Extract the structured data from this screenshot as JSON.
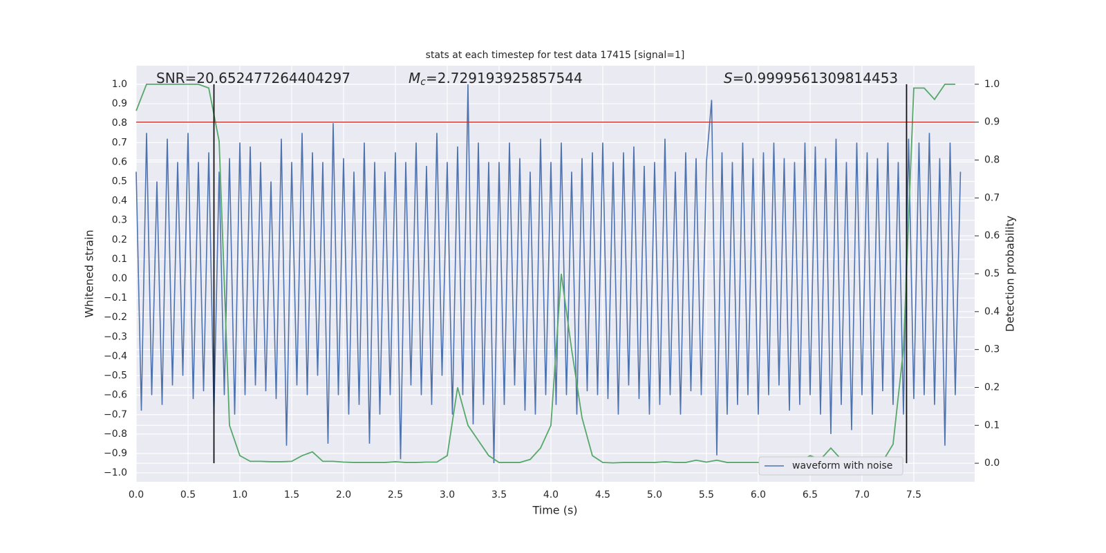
{
  "chart_data": {
    "type": "line",
    "title": "stats at each timestep for test data 17415 [signal=1]",
    "xlabel": "Time (s)",
    "ylabel": "Whitened strain",
    "y2label": "Detection probability",
    "annotations": [
      {
        "text": "SNR=20.652477264404297"
      },
      {
        "symbol": "M",
        "subscript": "c",
        "text": "=2.729193925857544"
      },
      {
        "symbol": "S",
        "text": "=0.9999561309814453"
      }
    ],
    "xlim": [
      0,
      8.087
    ],
    "xticks": [
      {
        "value": 0,
        "label": "0.0"
      },
      0.5,
      {
        "value": 1,
        "label": "1.0"
      },
      1.5,
      {
        "value": 2,
        "label": "2.0"
      },
      2.5,
      {
        "value": 3,
        "label": "3.0"
      },
      3.5,
      {
        "value": 4,
        "label": "4.0"
      },
      4.5,
      {
        "value": 5,
        "label": "5.0"
      },
      5.5,
      {
        "value": 6,
        "label": "6.0"
      },
      6.5,
      {
        "value": 7,
        "label": "7.0"
      },
      7.5
    ],
    "ylim": [
      -1.046,
      1.096
    ],
    "yticks": [
      {
        "value": -1,
        "label": "−1.0"
      },
      {
        "value": -0.9,
        "label": "−0.9"
      },
      {
        "value": -0.8,
        "label": "−0.8"
      },
      {
        "value": -0.7,
        "label": "−0.7"
      },
      {
        "value": -0.6,
        "label": "−0.6"
      },
      {
        "value": -0.5,
        "label": "−0.5"
      },
      {
        "value": -0.4,
        "label": "−0.4"
      },
      {
        "value": -0.3,
        "label": "−0.3"
      },
      {
        "value": -0.2,
        "label": "−0.2"
      },
      {
        "value": -0.1,
        "label": "−0.1"
      },
      {
        "value": 0,
        "label": "0.0"
      },
      0.1,
      0.2,
      0.3,
      0.4,
      0.5,
      0.6,
      0.7,
      0.8,
      0.9,
      {
        "value": 1,
        "label": "1.0"
      }
    ],
    "y2lim": [
      -0.049,
      1.049
    ],
    "y2ticks": [
      {
        "value": 0,
        "label": "0.0"
      },
      0.1,
      0.2,
      0.3,
      0.4,
      0.5,
      0.6,
      0.7,
      0.8,
      0.9,
      {
        "value": 1,
        "label": "1.0"
      }
    ],
    "grid": true,
    "legend": "lower right",
    "threshold": {
      "value": 0.9,
      "axis": "y2",
      "color": "#b5322f"
    },
    "vlines": {
      "x": [
        0.75,
        7.43
      ],
      "color": "#111111"
    },
    "series": [
      {
        "name": "waveform with noise",
        "color": "#4c72b0",
        "x": [
          0,
          0.05,
          0.1,
          0.15,
          0.2,
          0.25,
          0.3,
          0.35,
          0.4,
          0.45,
          0.5,
          0.55,
          0.6,
          0.65,
          0.7,
          0.75,
          0.8,
          0.85,
          0.9,
          0.95,
          1,
          1.05,
          1.1,
          1.15,
          1.2,
          1.25,
          1.3,
          1.35,
          1.4,
          1.45,
          1.5,
          1.55,
          1.6,
          1.65,
          1.7,
          1.75,
          1.8,
          1.85,
          1.9,
          1.95,
          2,
          2.05,
          2.1,
          2.15,
          2.2,
          2.25,
          2.3,
          2.35,
          2.4,
          2.45,
          2.5,
          2.55,
          2.6,
          2.65,
          2.7,
          2.75,
          2.8,
          2.85,
          2.9,
          2.95,
          3,
          3.05,
          3.1,
          3.15,
          3.2,
          3.25,
          3.3,
          3.35,
          3.4,
          3.45,
          3.5,
          3.55,
          3.6,
          3.65,
          3.7,
          3.75,
          3.8,
          3.85,
          3.9,
          3.95,
          4,
          4.05,
          4.1,
          4.15,
          4.2,
          4.25,
          4.3,
          4.35,
          4.4,
          4.45,
          4.5,
          4.55,
          4.6,
          4.65,
          4.7,
          4.75,
          4.8,
          4.85,
          4.9,
          4.95,
          5,
          5.05,
          5.1,
          5.15,
          5.2,
          5.25,
          5.3,
          5.35,
          5.4,
          5.45,
          5.5,
          5.55,
          5.6,
          5.65,
          5.7,
          5.75,
          5.8,
          5.85,
          5.9,
          5.95,
          6,
          6.05,
          6.1,
          6.15,
          6.2,
          6.25,
          6.3,
          6.35,
          6.4,
          6.45,
          6.5,
          6.55,
          6.6,
          6.65,
          6.7,
          6.75,
          6.8,
          6.85,
          6.9,
          6.95,
          7,
          7.05,
          7.1,
          7.15,
          7.2,
          7.25,
          7.3,
          7.35,
          7.4,
          7.45,
          7.5,
          7.55,
          7.6,
          7.65,
          7.7,
          7.75,
          7.8,
          7.85,
          7.9,
          7.95
        ],
        "values": [
          0.55,
          -0.68,
          0.75,
          -0.6,
          0.5,
          -0.65,
          0.72,
          -0.55,
          0.6,
          -0.5,
          0.75,
          -0.62,
          0.6,
          -0.58,
          0.65,
          -0.7,
          0.55,
          -0.6,
          0.62,
          -0.7,
          0.7,
          -0.6,
          0.68,
          -0.55,
          0.6,
          -0.58,
          0.5,
          -0.62,
          0.72,
          -0.86,
          0.6,
          -0.55,
          0.75,
          -0.6,
          0.65,
          -0.5,
          0.6,
          -0.85,
          0.8,
          -0.6,
          0.62,
          -0.7,
          0.55,
          -0.65,
          0.7,
          -0.85,
          0.6,
          -0.7,
          0.55,
          -0.6,
          0.65,
          -0.93,
          0.6,
          -0.55,
          0.7,
          -0.6,
          0.58,
          -0.65,
          0.75,
          -0.5,
          0.6,
          -0.7,
          0.68,
          -0.6,
          1.0,
          -0.75,
          0.7,
          -0.65,
          0.6,
          -0.95,
          0.6,
          -0.65,
          0.7,
          -0.55,
          0.62,
          -0.68,
          0.55,
          -0.7,
          0.72,
          -0.6,
          0.6,
          -0.65,
          0.7,
          -0.6,
          0.55,
          -0.7,
          0.62,
          -0.58,
          0.65,
          -0.6,
          0.7,
          -0.62,
          0.6,
          -0.7,
          0.65,
          -0.55,
          0.68,
          -0.62,
          0.58,
          -0.7,
          0.6,
          -0.65,
          0.72,
          -0.6,
          0.55,
          -0.7,
          0.65,
          -0.58,
          0.62,
          -0.6,
          0.6,
          0.92,
          -0.91,
          0.65,
          -0.7,
          0.6,
          -0.65,
          0.7,
          -0.6,
          0.62,
          -0.7,
          0.65,
          -0.6,
          0.7,
          -0.55,
          0.62,
          -0.68,
          0.6,
          -0.65,
          0.7,
          -0.6,
          0.68,
          -0.7,
          0.62,
          -0.8,
          0.72,
          -0.65,
          0.6,
          -0.78,
          0.7,
          -0.6,
          0.65,
          -0.7,
          0.62,
          -0.58,
          0.7,
          -0.65,
          0.6,
          -0.7,
          0.72,
          -0.62,
          0.7,
          -0.6,
          0.75,
          -0.65,
          0.62,
          -0.86,
          0.7,
          -0.6,
          0.55
        ]
      },
      {
        "color": "#55a868",
        "axis": "y2",
        "x": [
          0,
          0.1,
          0.2,
          0.3,
          0.4,
          0.5,
          0.6,
          0.7,
          0.8,
          0.9,
          1,
          1.1,
          1.2,
          1.3,
          1.4,
          1.5,
          1.6,
          1.7,
          1.8,
          1.9,
          2,
          2.1,
          2.2,
          2.3,
          2.4,
          2.5,
          2.6,
          2.7,
          2.8,
          2.9,
          3,
          3.1,
          3.2,
          3.3,
          3.4,
          3.5,
          3.6,
          3.7,
          3.8,
          3.9,
          4,
          4.1,
          4.2,
          4.3,
          4.4,
          4.5,
          4.6,
          4.7,
          4.8,
          4.9,
          5,
          5.1,
          5.2,
          5.3,
          5.4,
          5.5,
          5.6,
          5.7,
          5.8,
          5.9,
          6,
          6.1,
          6.2,
          6.3,
          6.4,
          6.5,
          6.6,
          6.7,
          6.8,
          6.9,
          7,
          7.1,
          7.2,
          7.3,
          7.4,
          7.5,
          7.6,
          7.7,
          7.8,
          7.9
        ],
        "values": [
          0.93,
          1.0,
          1.0,
          1.0,
          1.0,
          1.0,
          1.0,
          0.99,
          0.85,
          0.1,
          0.02,
          0.005,
          0.005,
          0.004,
          0.004,
          0.005,
          0.02,
          0.03,
          0.005,
          0.005,
          0.003,
          0.002,
          0.002,
          0.002,
          0.002,
          0.004,
          0.002,
          0.002,
          0.003,
          0.003,
          0.02,
          0.2,
          0.1,
          0.06,
          0.02,
          0.002,
          0.002,
          0.002,
          0.01,
          0.04,
          0.1,
          0.5,
          0.3,
          0.12,
          0.02,
          0.002,
          0.001,
          0.002,
          0.002,
          0.002,
          0.002,
          0.004,
          0.002,
          0.002,
          0.008,
          0.003,
          0.008,
          0.002,
          0.002,
          0.002,
          0.002,
          0.003,
          0.003,
          0.002,
          0.004,
          0.02,
          0.01,
          0.04,
          0.01,
          0.005,
          0.002,
          0.002,
          0.005,
          0.05,
          0.3,
          0.99,
          0.99,
          0.96,
          1.0,
          1.0
        ]
      }
    ]
  }
}
